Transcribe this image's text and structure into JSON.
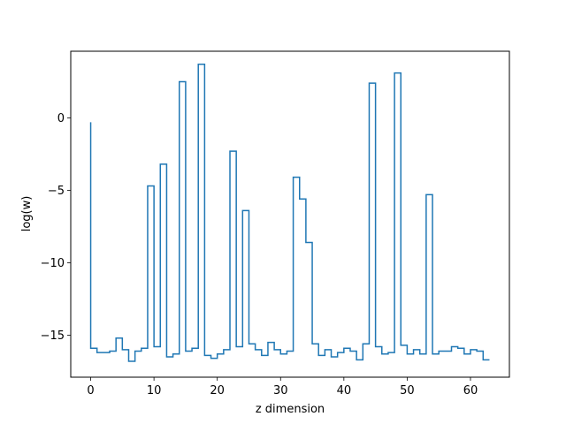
{
  "chart_data": {
    "type": "line",
    "drawstyle": "steps",
    "xlabel": "z dimension",
    "ylabel": "log(w)",
    "xlim": [
      -3.15,
      66.15
    ],
    "ylim": [
      -17.9,
      4.6
    ],
    "xticks": [
      0,
      10,
      20,
      30,
      40,
      50,
      60
    ],
    "yticks": [
      0,
      -5,
      -10,
      -15
    ],
    "grid": false,
    "color": "#1f77b4",
    "series": [
      {
        "x": [
          0,
          1,
          2,
          3,
          4,
          5,
          6,
          7,
          8,
          9,
          10,
          11,
          12,
          13,
          14,
          15,
          16,
          17,
          18,
          19,
          20,
          21,
          22,
          23,
          24,
          25,
          26,
          27,
          28,
          29,
          30,
          31,
          32,
          33,
          34,
          35,
          36,
          37,
          38,
          39,
          40,
          41,
          42,
          43,
          44,
          45,
          46,
          47,
          48,
          49,
          50,
          51,
          52,
          53,
          54,
          55,
          56,
          57,
          58,
          59,
          60,
          61,
          62,
          63
        ],
        "values": [
          -0.3,
          -15.9,
          -16.2,
          -16.2,
          -16.1,
          -15.2,
          -16.0,
          -16.8,
          -16.1,
          -15.9,
          -4.7,
          -15.8,
          -3.2,
          -16.5,
          -16.3,
          2.5,
          -16.1,
          -15.9,
          3.7,
          -16.4,
          -16.6,
          -16.3,
          -16.0,
          -2.3,
          -15.8,
          -6.4,
          -15.6,
          -16.0,
          -16.4,
          -15.5,
          -16.0,
          -16.3,
          -16.1,
          -4.1,
          -5.6,
          -8.6,
          -15.6,
          -16.4,
          -16.0,
          -16.5,
          -16.2,
          -15.9,
          -16.1,
          -16.7,
          -15.6,
          2.4,
          -15.8,
          -16.3,
          -16.2,
          3.1,
          -15.7,
          -16.3,
          -16.0,
          -16.3,
          -5.3,
          -16.3,
          -16.1,
          -16.1,
          -15.8,
          -15.9,
          -16.3,
          -16.0,
          -16.1,
          -16.7
        ]
      }
    ]
  }
}
